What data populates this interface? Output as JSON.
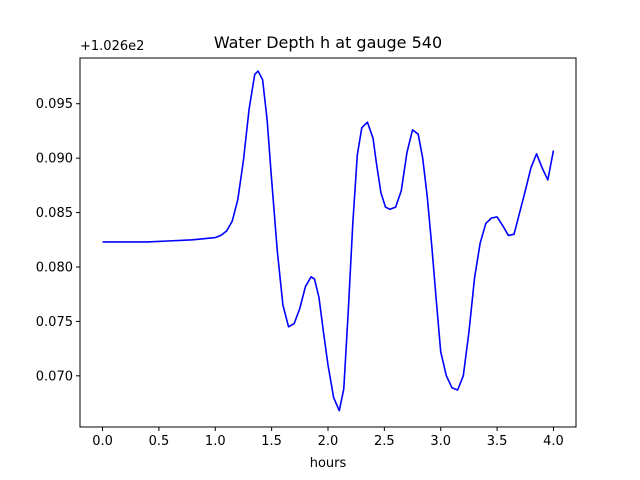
{
  "chart_data": {
    "type": "line",
    "title": "Water Depth h at gauge 540",
    "xlabel": "hours",
    "ylabel": "",
    "y_offset_label": "+1.026e2",
    "xlim": [
      -0.2,
      4.2
    ],
    "ylim": [
      0.0653,
      0.0992
    ],
    "xticks": [
      0.0,
      0.5,
      1.0,
      1.5,
      2.0,
      2.5,
      3.0,
      3.5,
      4.0
    ],
    "xtick_labels": [
      "0.0",
      "0.5",
      "1.0",
      "1.5",
      "2.0",
      "2.5",
      "3.0",
      "3.5",
      "4.0"
    ],
    "yticks": [
      0.07,
      0.075,
      0.08,
      0.085,
      0.09,
      0.095
    ],
    "ytick_labels": [
      "0.070",
      "0.075",
      "0.080",
      "0.085",
      "0.090",
      "0.095"
    ],
    "grid": false,
    "series": [
      {
        "color": "#0000ff",
        "x": [
          0.0,
          0.2,
          0.4,
          0.6,
          0.8,
          0.9,
          1.0,
          1.05,
          1.1,
          1.15,
          1.2,
          1.25,
          1.3,
          1.35,
          1.38,
          1.42,
          1.46,
          1.5,
          1.55,
          1.6,
          1.65,
          1.7,
          1.75,
          1.8,
          1.85,
          1.88,
          1.92,
          1.96,
          2.0,
          2.05,
          2.1,
          2.14,
          2.18,
          2.22,
          2.26,
          2.3,
          2.35,
          2.4,
          2.43,
          2.47,
          2.51,
          2.55,
          2.6,
          2.65,
          2.7,
          2.75,
          2.8,
          2.84,
          2.88,
          2.92,
          2.96,
          3.0,
          3.05,
          3.1,
          3.15,
          3.2,
          3.25,
          3.3,
          3.35,
          3.4,
          3.45,
          3.5,
          3.55,
          3.6,
          3.65,
          3.7,
          3.75,
          3.8,
          3.85,
          3.9,
          3.95,
          4.0
        ],
        "y": [
          0.0823,
          0.0823,
          0.0823,
          0.0824,
          0.0825,
          0.0826,
          0.0827,
          0.0829,
          0.0833,
          0.0842,
          0.0862,
          0.0898,
          0.0945,
          0.0977,
          0.098,
          0.0972,
          0.0935,
          0.088,
          0.0815,
          0.0765,
          0.0745,
          0.0748,
          0.0762,
          0.0782,
          0.0791,
          0.0789,
          0.0772,
          0.074,
          0.071,
          0.068,
          0.0668,
          0.0688,
          0.076,
          0.084,
          0.0903,
          0.0928,
          0.0933,
          0.0918,
          0.0895,
          0.0868,
          0.0855,
          0.0853,
          0.0855,
          0.087,
          0.0905,
          0.0926,
          0.0922,
          0.09,
          0.0865,
          0.082,
          0.077,
          0.0722,
          0.07,
          0.0689,
          0.0687,
          0.07,
          0.074,
          0.079,
          0.0822,
          0.084,
          0.0845,
          0.0846,
          0.0838,
          0.0829,
          0.083,
          0.085,
          0.087,
          0.0891,
          0.0904,
          0.0891,
          0.088,
          0.0907
        ]
      }
    ]
  }
}
